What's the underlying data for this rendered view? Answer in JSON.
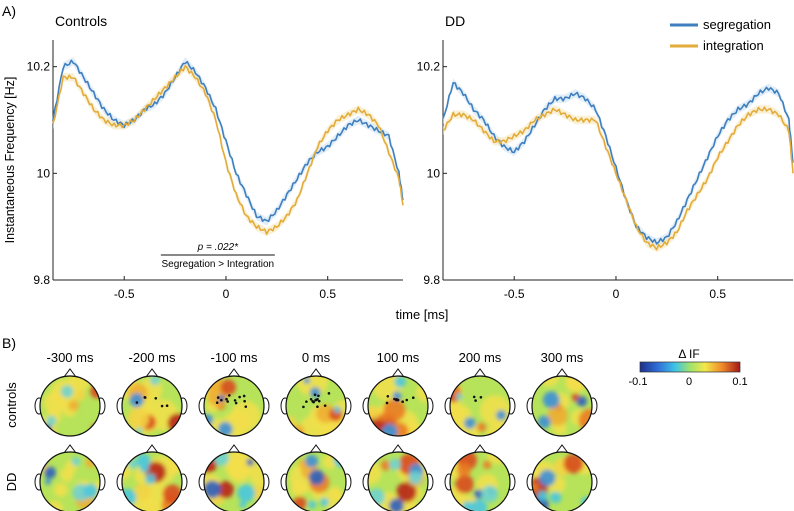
{
  "panel_a_label": "A)",
  "panel_b_label": "B)",
  "colors": {
    "segregation": "#3f7fbf",
    "integration": "#e3ac3a",
    "segregation_band": "#cfe3f1",
    "integration_band": "#f6e6bb"
  },
  "legend": {
    "segregation": "segregation",
    "integration": "integration"
  },
  "chart_data": [
    {
      "type": "line",
      "title": "Controls",
      "ylabel": "Instantaneous Frequency [Hz]",
      "xlabel": "time [ms]",
      "xlim": [
        -0.85,
        0.87
      ],
      "ylim": [
        9.8,
        10.25
      ],
      "xticks": [
        "-0.5",
        "0",
        "0.5"
      ],
      "xtick_values": [
        -0.5,
        0,
        0.5
      ],
      "yticks": [
        "9.8",
        "10",
        "10.2"
      ],
      "ytick_values": [
        9.8,
        10.0,
        10.2
      ],
      "series": [
        {
          "name": "segregation",
          "x": [
            -0.85,
            -0.8,
            -0.75,
            -0.7,
            -0.65,
            -0.6,
            -0.55,
            -0.5,
            -0.45,
            -0.4,
            -0.35,
            -0.3,
            -0.25,
            -0.2,
            -0.15,
            -0.1,
            -0.05,
            0.0,
            0.05,
            0.1,
            0.15,
            0.2,
            0.25,
            0.3,
            0.35,
            0.4,
            0.45,
            0.5,
            0.55,
            0.6,
            0.65,
            0.7,
            0.75,
            0.8,
            0.85,
            0.87
          ],
          "y": [
            10.1,
            10.2,
            10.21,
            10.18,
            10.15,
            10.12,
            10.1,
            10.09,
            10.1,
            10.12,
            10.13,
            10.15,
            10.18,
            10.21,
            10.19,
            10.16,
            10.12,
            10.06,
            10.0,
            9.96,
            9.92,
            9.91,
            9.93,
            9.96,
            9.99,
            10.02,
            10.04,
            10.05,
            10.07,
            10.09,
            10.1,
            10.09,
            10.08,
            10.07,
            10.0,
            9.95
          ]
        },
        {
          "name": "integration",
          "x": [
            -0.85,
            -0.8,
            -0.75,
            -0.7,
            -0.65,
            -0.6,
            -0.55,
            -0.5,
            -0.45,
            -0.4,
            -0.35,
            -0.3,
            -0.25,
            -0.2,
            -0.15,
            -0.1,
            -0.05,
            0.0,
            0.05,
            0.1,
            0.15,
            0.2,
            0.25,
            0.3,
            0.35,
            0.4,
            0.45,
            0.5,
            0.55,
            0.6,
            0.65,
            0.7,
            0.75,
            0.8,
            0.85,
            0.87
          ],
          "y": [
            10.09,
            10.18,
            10.18,
            10.15,
            10.12,
            10.1,
            10.09,
            10.09,
            10.1,
            10.12,
            10.14,
            10.16,
            10.18,
            10.2,
            10.18,
            10.15,
            10.1,
            10.02,
            9.96,
            9.92,
            9.9,
            9.89,
            9.9,
            9.92,
            9.95,
            10.0,
            10.05,
            10.08,
            10.1,
            10.11,
            10.12,
            10.11,
            10.09,
            10.04,
            9.99,
            9.94
          ]
        }
      ],
      "annotation": {
        "stat": "p = .022*",
        "label": "Segregation > Integration",
        "x_range": [
          -0.32,
          0.24
        ]
      }
    },
    {
      "type": "line",
      "title": "DD",
      "xlim": [
        -0.85,
        0.87
      ],
      "ylim": [
        9.8,
        10.25
      ],
      "xticks": [
        "-0.5",
        "0",
        "0.5"
      ],
      "xtick_values": [
        -0.5,
        0,
        0.5
      ],
      "yticks": [
        "9.8",
        "10",
        "10.2"
      ],
      "ytick_values": [
        9.8,
        10.0,
        10.2
      ],
      "series": [
        {
          "name": "segregation",
          "x": [
            -0.85,
            -0.8,
            -0.75,
            -0.7,
            -0.65,
            -0.6,
            -0.55,
            -0.5,
            -0.45,
            -0.4,
            -0.35,
            -0.3,
            -0.25,
            -0.2,
            -0.15,
            -0.1,
            -0.05,
            0.0,
            0.05,
            0.1,
            0.15,
            0.2,
            0.25,
            0.3,
            0.35,
            0.4,
            0.45,
            0.5,
            0.55,
            0.6,
            0.65,
            0.7,
            0.75,
            0.8,
            0.85,
            0.87
          ],
          "y": [
            10.1,
            10.17,
            10.15,
            10.12,
            10.1,
            10.07,
            10.05,
            10.04,
            10.06,
            10.09,
            10.12,
            10.14,
            10.14,
            10.15,
            10.14,
            10.12,
            10.07,
            10.01,
            9.95,
            9.9,
            9.88,
            9.87,
            9.88,
            9.91,
            9.95,
            9.99,
            10.03,
            10.07,
            10.1,
            10.12,
            10.13,
            10.15,
            10.16,
            10.15,
            10.1,
            10.02
          ]
        },
        {
          "name": "integration",
          "x": [
            -0.85,
            -0.8,
            -0.75,
            -0.7,
            -0.65,
            -0.6,
            -0.55,
            -0.5,
            -0.45,
            -0.4,
            -0.35,
            -0.3,
            -0.25,
            -0.2,
            -0.15,
            -0.1,
            -0.05,
            0.0,
            0.05,
            0.1,
            0.15,
            0.2,
            0.25,
            0.3,
            0.35,
            0.4,
            0.45,
            0.5,
            0.55,
            0.6,
            0.65,
            0.7,
            0.75,
            0.8,
            0.85,
            0.87
          ],
          "y": [
            10.08,
            10.11,
            10.11,
            10.1,
            10.08,
            10.06,
            10.06,
            10.07,
            10.08,
            10.1,
            10.11,
            10.12,
            10.11,
            10.1,
            10.1,
            10.1,
            10.05,
            10.0,
            9.95,
            9.9,
            9.87,
            9.86,
            9.87,
            9.89,
            9.93,
            9.96,
            9.99,
            10.03,
            10.06,
            10.09,
            10.11,
            10.12,
            10.12,
            10.11,
            10.08,
            10.0
          ]
        }
      ]
    },
    {
      "type": "heatmap",
      "colorbar": {
        "label": "Δ IF",
        "ticks": [
          "-0.1",
          "0",
          "0.1"
        ],
        "range": [
          -0.1,
          0.1
        ]
      },
      "columns": [
        "-300 ms",
        "-200 ms",
        "-100 ms",
        "0 ms",
        "100 ms",
        "200 ms",
        "300 ms"
      ],
      "rows": [
        "controls",
        "DD"
      ]
    }
  ]
}
